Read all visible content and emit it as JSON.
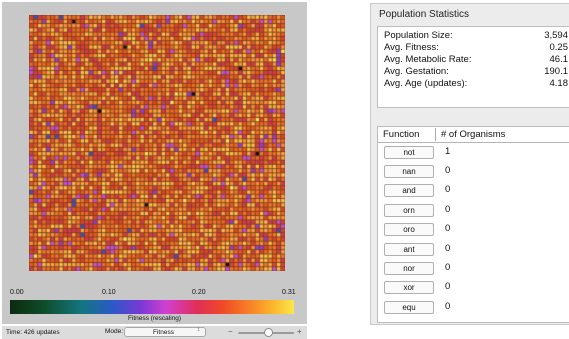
{
  "map": {
    "scale": {
      "ticks": [
        "0.00",
        "0.10",
        "0.20",
        "0.31"
      ],
      "label": "Fitness (rescaling)"
    },
    "status": {
      "time": "Time: 426 updates",
      "mode_label": "Mode:",
      "mode_value": "Fitness",
      "zoom_minus": "−",
      "zoom_plus": "+"
    }
  },
  "stats": {
    "title": "Population Statistics",
    "rows": [
      {
        "label": "Population Size:",
        "value": "3,594"
      },
      {
        "label": "Avg. Fitness:",
        "value": "0.25"
      },
      {
        "label": "Avg. Metabolic Rate:",
        "value": "46.1"
      },
      {
        "label": "Avg. Gestation:",
        "value": "190.1"
      },
      {
        "label": "Avg. Age (updates):",
        "value": "4.18"
      }
    ]
  },
  "functions": {
    "header_function": "Function",
    "header_count": "# of Organisms",
    "rows": [
      {
        "name": "not",
        "count": "1"
      },
      {
        "name": "nan",
        "count": "0"
      },
      {
        "name": "and",
        "count": "0"
      },
      {
        "name": "orn",
        "count": "0"
      },
      {
        "name": "oro",
        "count": "0"
      },
      {
        "name": "ant",
        "count": "0"
      },
      {
        "name": "nor",
        "count": "0"
      },
      {
        "name": "xor",
        "count": "0"
      },
      {
        "name": "equ",
        "count": "0"
      }
    ]
  }
}
